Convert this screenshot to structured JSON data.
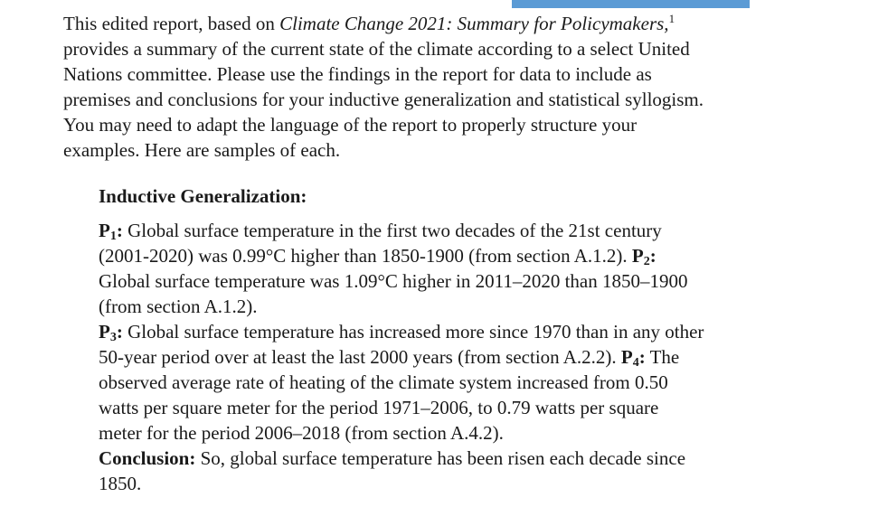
{
  "intro": {
    "line1_pre": "This edited report, based on ",
    "line1_title": "Climate Change 2021: Summary for Policymakers,",
    "line1_footnote": "1",
    "line2": "provides a summary of the current state of the climate according to a select United",
    "line3": "Nations committee. Please use the findings in the report for data to include as",
    "line4": "premises and conclusions for your inductive generalization and statistical syllogism.",
    "line5": "You may need to adapt the language of the report to properly structure your",
    "line6": "examples. Here are samples of each."
  },
  "section": {
    "heading": "Inductive Generalization:",
    "p1_label": "P",
    "p1_sub": "1",
    "p1_colon": ":",
    "p1_line1": " Global surface temperature in the first two decades of the 21st century",
    "p1_line2_pre": "(2001-2020) was 0.99°C higher than 1850-1900 (from section A.1.2). ",
    "p2_label": "P",
    "p2_sub": "2",
    "p2_colon": ":",
    "p2_line1": "Global surface temperature was 1.09°C higher in 2011–2020 than 1850–1900",
    "p2_line2": "(from section A.1.2).",
    "p3_label": "P",
    "p3_sub": "3",
    "p3_colon": ":",
    "p3_line1": " Global surface temperature has increased more since 1970 than in any other",
    "p3_line2_pre": "50-year period over at least the last 2000 years (from section A.2.2). ",
    "p4_label": "P",
    "p4_sub": "4",
    "p4_colon": ":",
    "p4_line2_post": " The",
    "p4_line3": "observed average rate of heating of the climate system increased from 0.50",
    "p4_line4": "watts per square meter for the period 1971–2006, to 0.79 watts per square",
    "p4_line5": "meter for the period 2006–2018 (from section A.4.2).",
    "conclusion_label": "Conclusion:",
    "conclusion_line1": " So, global surface temperature has been risen each decade since",
    "conclusion_line2": "1850."
  }
}
